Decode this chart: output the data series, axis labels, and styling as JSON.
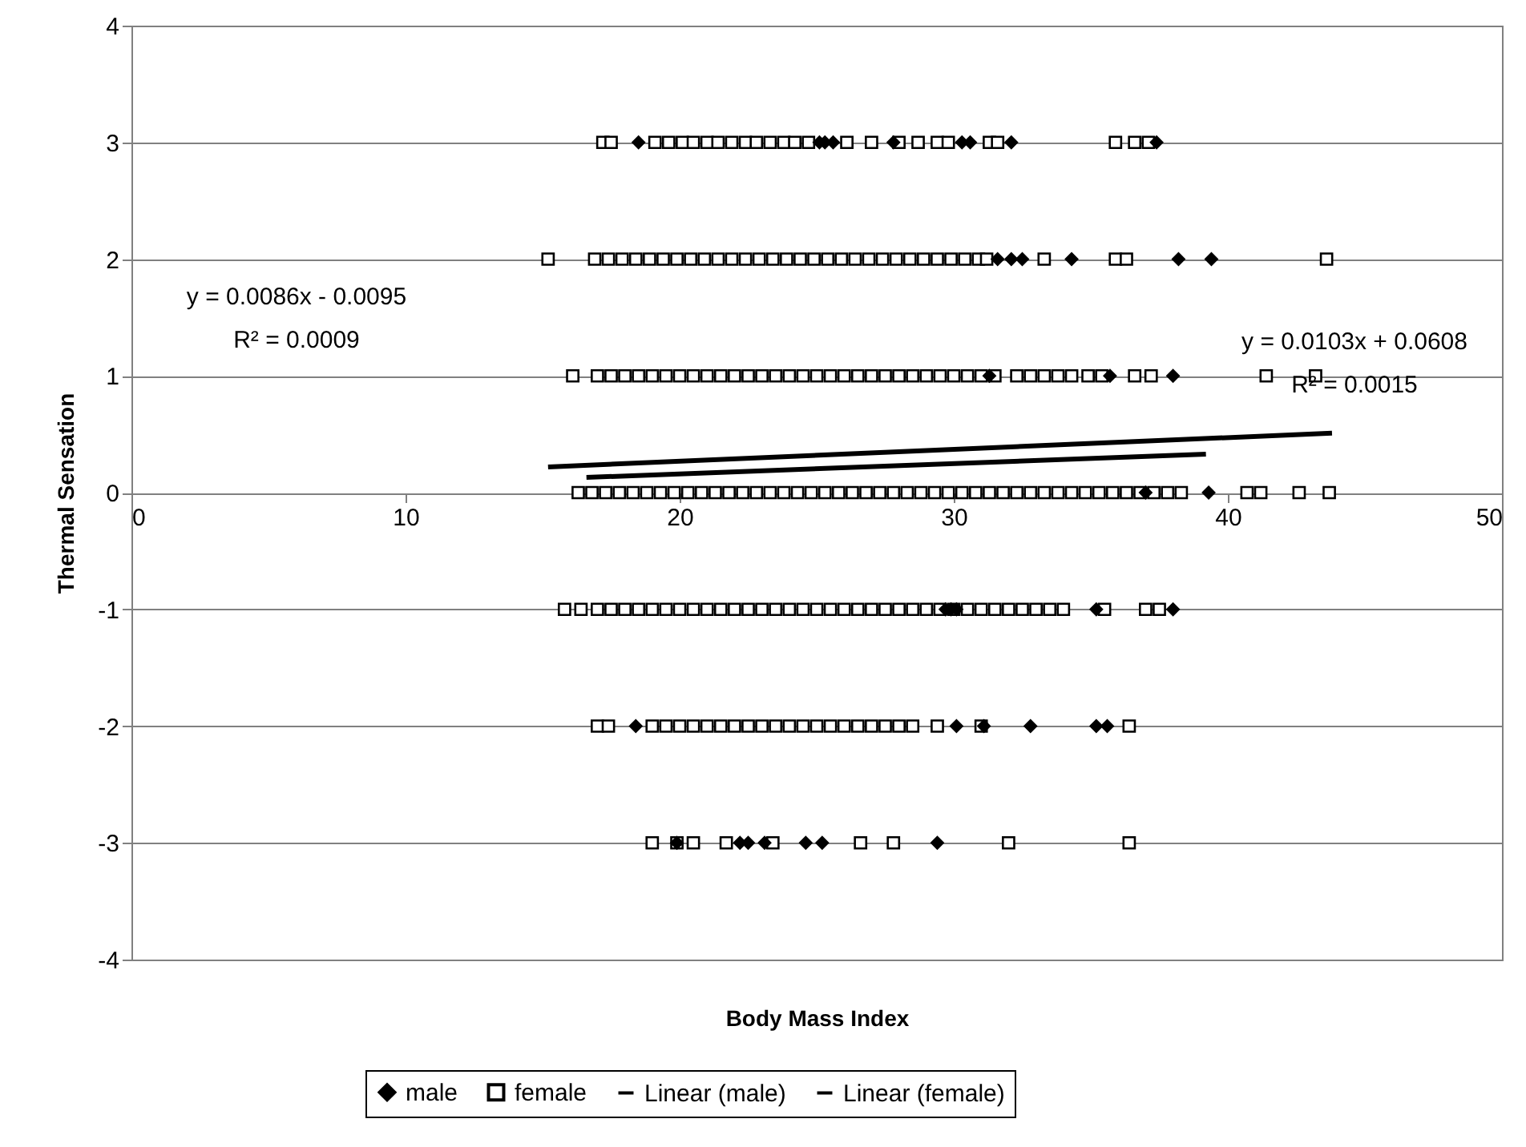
{
  "chart_data": {
    "type": "scatter",
    "xlabel": "Body Mass Index",
    "ylabel": "Thermal Sensation",
    "xlim": [
      0,
      50
    ],
    "xticks": [
      0,
      10,
      20,
      30,
      40,
      50
    ],
    "ylim": [
      -4,
      4
    ],
    "yticks": [
      -4,
      -3,
      -2,
      -1,
      0,
      1,
      2,
      3,
      4
    ],
    "grid": "y",
    "legend": "bottom",
    "annotations": [
      "y = 0.0086x - 0.0095",
      "R² = 0.0009",
      "y = 0.0103x + 0.0608",
      "R² = 0.0015"
    ],
    "series": [
      {
        "name": "male",
        "color": "#000000",
        "marker": "diamond",
        "x": [
          18.5,
          25.1,
          25.3,
          25.6,
          27.8,
          30.3,
          30.6,
          32.1,
          37.4,
          31.6,
          32.1,
          32.5,
          34.3,
          38.2,
          39.4,
          31.3,
          35.7,
          38.0,
          37.0,
          39.3,
          29.7,
          29.9,
          30.1,
          35.2,
          38.0,
          18.4,
          30.1,
          31.1,
          32.8,
          35.2,
          35.6,
          19.9,
          22.2,
          22.5,
          23.1,
          24.6,
          25.2,
          29.4
        ],
        "values": [
          3,
          3,
          3,
          3,
          3,
          3,
          3,
          3,
          3,
          2,
          2,
          2,
          2,
          2,
          2,
          1,
          1,
          1,
          0,
          0,
          -1,
          -1,
          -1,
          -1,
          -1,
          -2,
          -2,
          -2,
          -2,
          -2,
          -2,
          -3,
          -3,
          -3,
          -3,
          -3,
          -3,
          -3
        ]
      },
      {
        "name": "female",
        "color": "#000000",
        "marker": "square",
        "x": [
          17.2,
          17.5,
          19.1,
          19.6,
          20.1,
          20.5,
          21.0,
          21.4,
          21.9,
          22.4,
          22.8,
          23.3,
          23.8,
          24.2,
          24.7,
          26.1,
          27.0,
          28.0,
          28.7,
          29.4,
          29.8,
          31.3,
          31.6,
          35.9,
          36.6,
          37.1,
          15.2,
          16.9,
          17.4,
          17.9,
          18.4,
          18.9,
          19.4,
          19.9,
          20.4,
          20.9,
          21.4,
          21.9,
          22.4,
          22.9,
          23.4,
          23.9,
          24.4,
          24.9,
          25.4,
          25.9,
          26.4,
          26.9,
          27.4,
          27.9,
          28.4,
          28.9,
          29.4,
          29.9,
          30.4,
          30.9,
          31.2,
          33.3,
          35.9,
          36.3,
          43.6,
          16.1,
          17.0,
          17.5,
          18.0,
          18.5,
          19.0,
          19.5,
          20.0,
          20.5,
          21.0,
          21.5,
          22.0,
          22.5,
          23.0,
          23.5,
          24.0,
          24.5,
          25.0,
          25.5,
          26.0,
          26.5,
          27.0,
          27.5,
          28.0,
          28.5,
          29.0,
          29.5,
          30.0,
          30.5,
          31.0,
          31.5,
          32.3,
          32.8,
          33.3,
          33.8,
          34.3,
          34.9,
          35.4,
          36.6,
          37.2,
          41.4,
          43.2,
          16.3,
          16.8,
          17.3,
          17.8,
          18.3,
          18.8,
          19.3,
          19.8,
          20.3,
          20.8,
          21.3,
          21.8,
          22.3,
          22.8,
          23.3,
          23.8,
          24.3,
          24.8,
          25.3,
          25.8,
          26.3,
          26.8,
          27.3,
          27.8,
          28.3,
          28.8,
          29.3,
          29.8,
          30.3,
          30.8,
          31.3,
          31.8,
          32.3,
          32.8,
          33.3,
          33.8,
          34.3,
          34.8,
          35.3,
          35.8,
          36.3,
          36.8,
          37.3,
          37.8,
          38.3,
          40.7,
          41.2,
          42.6,
          43.7,
          15.8,
          16.4,
          17.0,
          17.5,
          18.0,
          18.5,
          19.0,
          19.5,
          20.0,
          20.5,
          21.0,
          21.5,
          22.0,
          22.5,
          23.0,
          23.5,
          24.0,
          24.5,
          25.0,
          25.5,
          26.0,
          26.5,
          27.0,
          27.5,
          28.0,
          28.5,
          29.0,
          29.5,
          30.0,
          30.5,
          31.0,
          31.5,
          32.0,
          32.5,
          33.0,
          33.5,
          34.0,
          35.5,
          37.0,
          37.5,
          17.0,
          17.4,
          19.0,
          19.5,
          20.0,
          20.5,
          21.0,
          21.5,
          22.0,
          22.5,
          23.0,
          23.5,
          24.0,
          24.5,
          25.0,
          25.5,
          26.0,
          26.5,
          27.0,
          27.5,
          28.0,
          28.5,
          29.4,
          31.0,
          36.4,
          19.0,
          19.9,
          20.5,
          21.7,
          23.4,
          26.6,
          27.8,
          32.0,
          36.4
        ],
        "values": [
          3,
          3,
          3,
          3,
          3,
          3,
          3,
          3,
          3,
          3,
          3,
          3,
          3,
          3,
          3,
          3,
          3,
          3,
          3,
          3,
          3,
          3,
          3,
          3,
          3,
          3,
          2,
          2,
          2,
          2,
          2,
          2,
          2,
          2,
          2,
          2,
          2,
          2,
          2,
          2,
          2,
          2,
          2,
          2,
          2,
          2,
          2,
          2,
          2,
          2,
          2,
          2,
          2,
          2,
          2,
          2,
          2,
          2,
          2,
          2,
          2,
          1,
          1,
          1,
          1,
          1,
          1,
          1,
          1,
          1,
          1,
          1,
          1,
          1,
          1,
          1,
          1,
          1,
          1,
          1,
          1,
          1,
          1,
          1,
          1,
          1,
          1,
          1,
          1,
          1,
          1,
          1,
          1,
          1,
          1,
          1,
          1,
          1,
          1,
          1,
          1,
          1,
          1,
          0,
          0,
          0,
          0,
          0,
          0,
          0,
          0,
          0,
          0,
          0,
          0,
          0,
          0,
          0,
          0,
          0,
          0,
          0,
          0,
          0,
          0,
          0,
          0,
          0,
          0,
          0,
          0,
          0,
          0,
          0,
          0,
          0,
          0,
          0,
          0,
          0,
          0,
          0,
          0,
          0,
          0,
          0,
          0,
          0,
          0,
          0,
          0,
          0,
          -1,
          -1,
          -1,
          -1,
          -1,
          -1,
          -1,
          -1,
          -1,
          -1,
          -1,
          -1,
          -1,
          -1,
          -1,
          -1,
          -1,
          -1,
          -1,
          -1,
          -1,
          -1,
          -1,
          -1,
          -1,
          -1,
          -1,
          -1,
          -1,
          -1,
          -1,
          -1,
          -1,
          -1,
          -1,
          -1,
          -1,
          -1,
          -1,
          -1,
          -2,
          -2,
          -2,
          -2,
          -2,
          -2,
          -2,
          -2,
          -2,
          -2,
          -2,
          -2,
          -2,
          -2,
          -2,
          -2,
          -2,
          -2,
          -2,
          -2,
          -2,
          -2,
          -2,
          -2,
          -2,
          -3,
          -3,
          -3,
          -3,
          -3,
          -3,
          -3,
          -3,
          -3
        ]
      },
      {
        "name": "Linear (male)",
        "type": "line",
        "color": "#000000",
        "x": [
          16.6,
          39.2
        ],
        "values": [
          0.13,
          0.33
        ]
      },
      {
        "name": "Linear (female)",
        "type": "line",
        "color": "#000000",
        "x": [
          15.2,
          43.8
        ],
        "values": [
          0.22,
          0.51
        ]
      }
    ]
  }
}
